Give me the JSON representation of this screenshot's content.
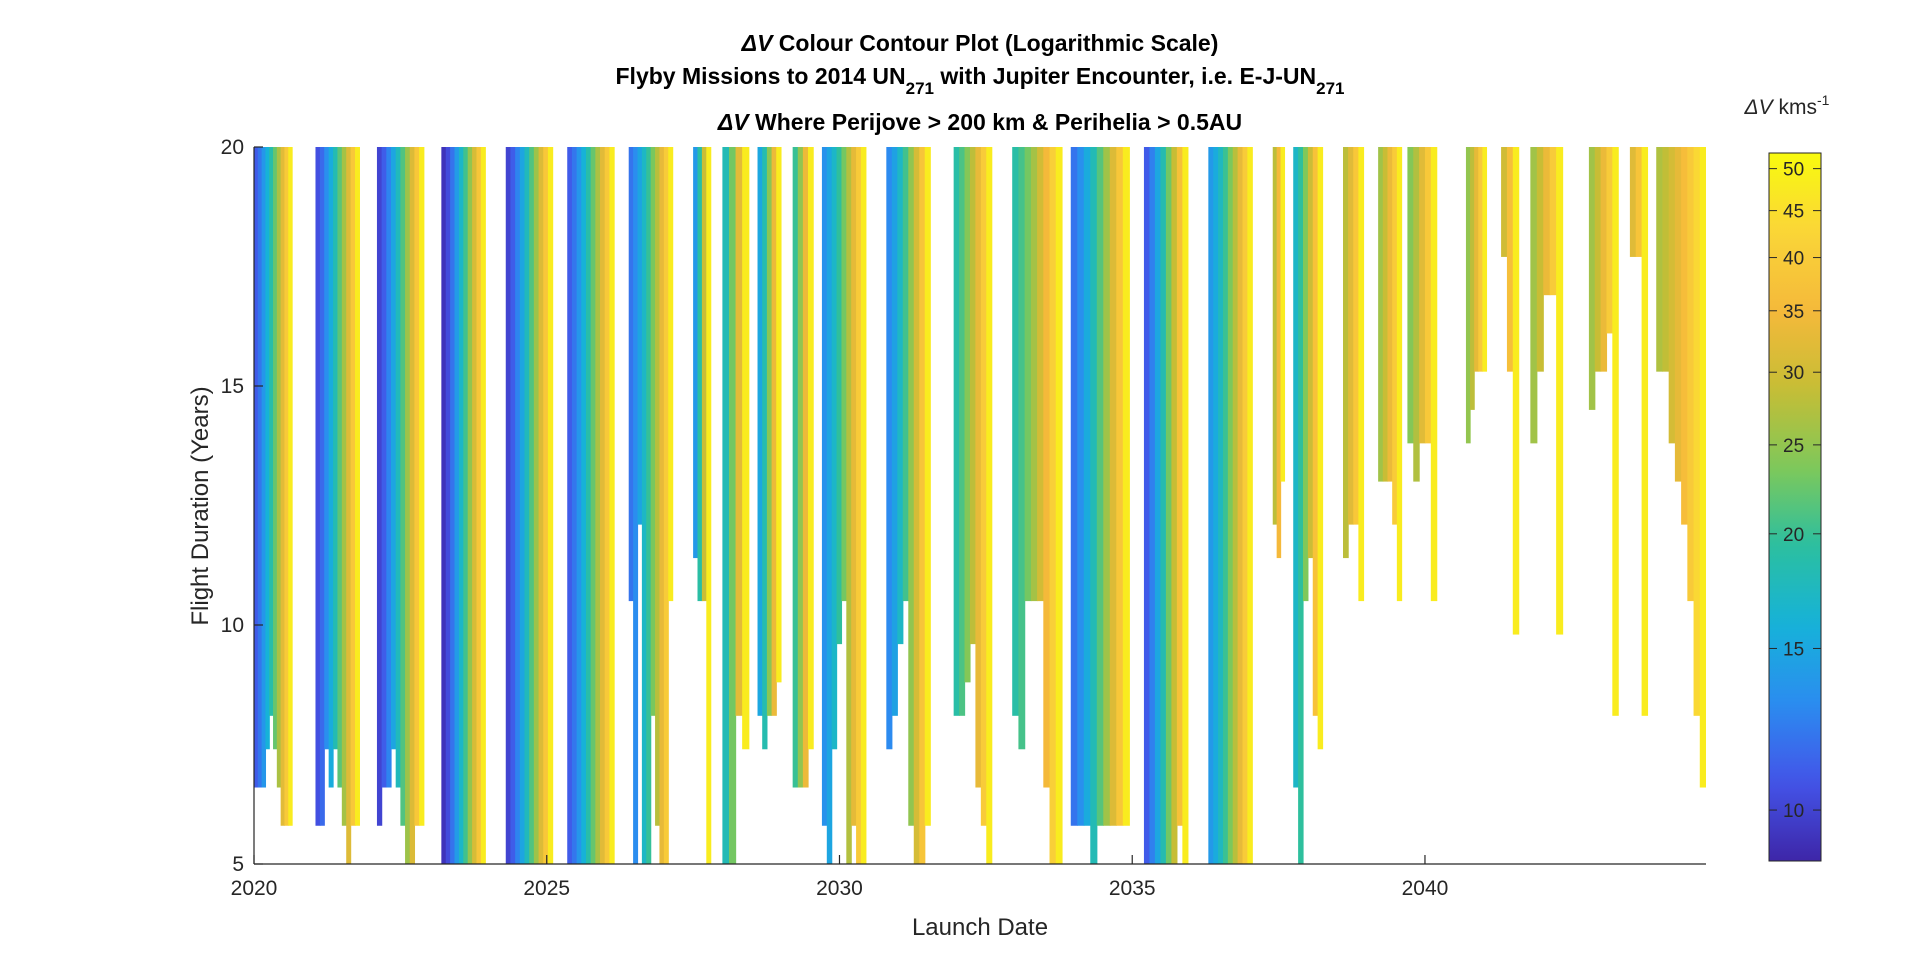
{
  "chart_data": {
    "type": "heatmap",
    "title": {
      "line1_symbol": "ΔV",
      "line1_text": " Colour Contour Plot (Logarithmic Scale)",
      "line2_a": "Flyby Missions to 2014 UN",
      "line2_sub1": "271",
      "line2_b": " with Jupiter Encounter, i.e. E-J-UN",
      "line2_sub2": "271",
      "line3_symbol": "ΔV",
      "line3_text": " Where Perijove > 200 km & Perihelia > 0.5AU"
    },
    "xlabel": "Launch Date",
    "ylabel": "Flight Duration (Years)",
    "xlim": [
      2020,
      2044.8
    ],
    "ylim": [
      5,
      20
    ],
    "x_ticks": [
      2020,
      2025,
      2030,
      2035,
      2040
    ],
    "y_ticks": [
      5,
      10,
      15,
      20
    ],
    "colorbar": {
      "label_symbol": "ΔV",
      "label_unit": " kms",
      "label_exp": "-1",
      "scale": "log",
      "range": [
        8.8,
        52
      ],
      "ticks": [
        10,
        15,
        20,
        25,
        30,
        35,
        40,
        45,
        50
      ],
      "colors": [
        "#3e26a8",
        "#4354e8",
        "#2b8cf0",
        "#16b2d9",
        "#2bbfa0",
        "#7ec85a",
        "#c6bd35",
        "#f5b93a",
        "#fad538",
        "#f9fb0e"
      ]
    },
    "windows": [
      {
        "start": 2020.0,
        "end": 2020.65,
        "min_dv": 11.0,
        "min_dur": [
          6.6,
          6.6,
          6.6,
          7.4,
          8.1,
          7.4,
          6.6,
          5.8,
          5.8,
          5.8
        ]
      },
      {
        "start": 2021.05,
        "end": 2021.8,
        "min_dv": 10.5,
        "min_dur": [
          5.8,
          5.8,
          7.4,
          6.6,
          7.4,
          6.6,
          5.8,
          5.0,
          5.8,
          5.8
        ]
      },
      {
        "start": 2022.1,
        "end": 2022.9,
        "min_dv": 10.0,
        "min_dur": [
          5.8,
          6.6,
          6.6,
          7.4,
          6.6,
          5.8,
          5.0,
          5.0,
          5.8,
          5.8
        ]
      },
      {
        "start": 2023.2,
        "end": 2023.95,
        "min_dv": 9.3,
        "min_dur": [
          5.0,
          5.0,
          5.0,
          5.0,
          5.0,
          5.0,
          5.0,
          5.0,
          5.0,
          5.0
        ]
      },
      {
        "start": 2024.3,
        "end": 2025.1,
        "min_dv": 10.0,
        "min_dur": [
          5.0,
          5.0,
          5.0,
          5.0,
          5.0,
          5.0,
          5.0,
          5.0,
          5.0,
          5.0
        ]
      },
      {
        "start": 2025.35,
        "end": 2026.15,
        "min_dv": 11.0,
        "min_dur": [
          5.0,
          5.0,
          5.0,
          5.0,
          5.0,
          5.0,
          5.0,
          5.0,
          5.0,
          5.0
        ]
      },
      {
        "start": 2026.4,
        "end": 2027.15,
        "min_dv": 12.0,
        "min_dur": [
          10.5,
          5.0,
          12.1,
          5.0,
          5.0,
          8.1,
          5.8,
          5.0,
          5.0,
          10.5
        ]
      },
      {
        "start": 2027.5,
        "end": 2027.8,
        "min_dv": 14.0,
        "min_dur": [
          11.4,
          10.5,
          10.5,
          5.0
        ]
      },
      {
        "start": 2028.0,
        "end": 2028.45,
        "min_dv": 18.0,
        "min_dur": [
          5.0,
          5.0,
          8.1,
          7.4
        ]
      },
      {
        "start": 2028.6,
        "end": 2029.0,
        "min_dv": 15.0,
        "min_dur": [
          8.1,
          7.4,
          8.1,
          8.1,
          8.8
        ]
      },
      {
        "start": 2029.2,
        "end": 2029.55,
        "min_dv": 20.0,
        "min_dur": [
          6.6,
          6.6,
          6.6,
          7.4
        ]
      },
      {
        "start": 2029.7,
        "end": 2030.45,
        "min_dv": 13.5,
        "min_dur": [
          5.8,
          5.0,
          7.4,
          9.6,
          10.5,
          5.0,
          5.8,
          5.0,
          5.0
        ]
      },
      {
        "start": 2030.8,
        "end": 2031.55,
        "min_dv": 13.0,
        "min_dur": [
          7.4,
          8.1,
          9.6,
          10.5,
          5.8,
          5.0,
          5.0,
          5.8
        ]
      },
      {
        "start": 2031.95,
        "end": 2032.6,
        "min_dv": 19.0,
        "min_dur": [
          8.1,
          8.1,
          8.8,
          9.6,
          6.6,
          5.8,
          5.0
        ]
      },
      {
        "start": 2032.95,
        "end": 2033.8,
        "min_dv": 19.0,
        "min_dur": [
          8.1,
          7.4,
          10.5,
          10.5,
          10.5,
          6.6,
          5.0,
          5.0
        ]
      },
      {
        "start": 2033.95,
        "end": 2034.95,
        "min_dv": 12.0,
        "min_dur": [
          5.8,
          5.8,
          5.8,
          5.0,
          5.8,
          5.8,
          5.8,
          5.8,
          5.8
        ]
      },
      {
        "start": 2035.2,
        "end": 2035.95,
        "min_dv": 11.0,
        "min_dur": [
          5.0,
          5.0,
          5.0,
          5.0,
          5.0,
          5.0,
          5.8,
          5.0
        ]
      },
      {
        "start": 2036.3,
        "end": 2037.05,
        "min_dv": 14.0,
        "min_dur": [
          5.0,
          5.0,
          5.0,
          5.0,
          5.0,
          5.0,
          5.0,
          5.0,
          5.0
        ]
      },
      {
        "start": 2037.4,
        "end": 2037.6,
        "min_dv": 28.0,
        "min_dur": [
          12.1,
          11.4,
          13.0
        ]
      },
      {
        "start": 2037.75,
        "end": 2038.25,
        "min_dv": 17.0,
        "min_dur": [
          6.6,
          5.0,
          10.5,
          11.4,
          8.1,
          7.4
        ]
      },
      {
        "start": 2038.6,
        "end": 2038.95,
        "min_dv": 28.0,
        "min_dur": [
          11.4,
          12.1,
          12.1,
          10.5
        ]
      },
      {
        "start": 2039.2,
        "end": 2039.6,
        "min_dv": 26.0,
        "min_dur": [
          13.0,
          13.0,
          13.0,
          12.1,
          10.5
        ]
      },
      {
        "start": 2039.7,
        "end": 2040.2,
        "min_dv": 24.0,
        "min_dur": [
          13.8,
          13.0,
          13.8,
          13.8,
          10.5
        ]
      },
      {
        "start": 2040.7,
        "end": 2041.05,
        "min_dv": 25.0,
        "min_dur": [
          13.8,
          14.5,
          15.3,
          15.3,
          15.3
        ]
      },
      {
        "start": 2041.3,
        "end": 2041.6,
        "min_dv": 30.0,
        "min_dur": [
          17.7,
          15.3,
          9.8
        ]
      },
      {
        "start": 2041.8,
        "end": 2042.35,
        "min_dv": 26.0,
        "min_dur": [
          13.8,
          15.3,
          16.9,
          16.9,
          9.8
        ]
      },
      {
        "start": 2042.8,
        "end": 2043.3,
        "min_dv": 26.0,
        "min_dur": [
          14.5,
          15.3,
          15.3,
          16.1,
          8.1
        ]
      },
      {
        "start": 2043.5,
        "end": 2043.8,
        "min_dv": 32.0,
        "min_dur": [
          17.7,
          17.7,
          8.1
        ]
      },
      {
        "start": 2043.95,
        "end": 2044.8,
        "min_dv": 27.0,
        "min_dur": [
          15.3,
          15.3,
          13.8,
          13.0,
          12.1,
          10.5,
          8.1,
          6.6
        ]
      }
    ]
  }
}
